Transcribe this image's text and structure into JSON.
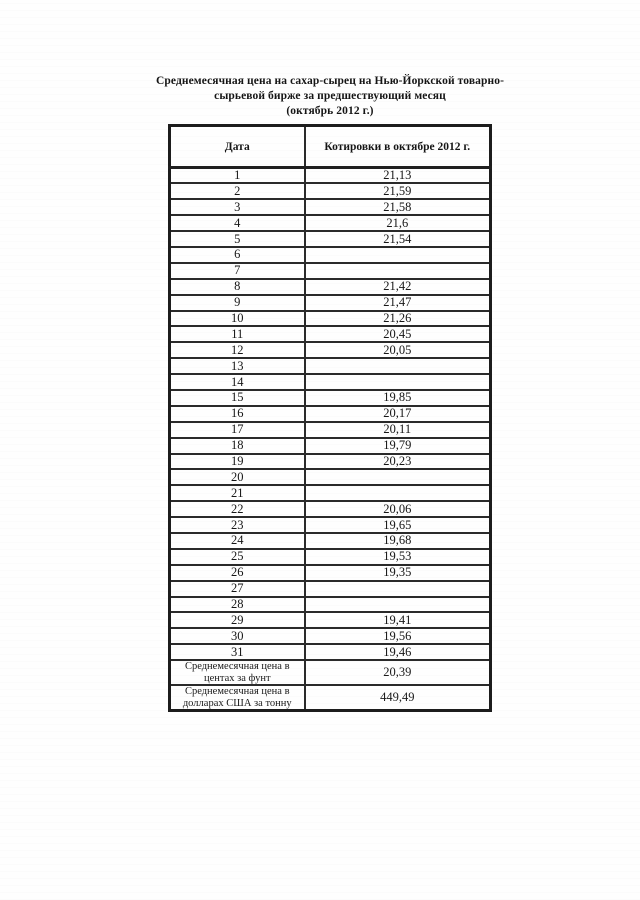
{
  "document": {
    "title_lines": [
      "Среднемесячная цена на сахар-сырец на Нью-Йоркской товарно-",
      "сырьевой бирже за предшествующий месяц",
      "(октябрь 2012 г.)"
    ]
  },
  "table": {
    "columns": [
      "Дата",
      "Котировки в октябре 2012 г."
    ],
    "rows": [
      {
        "date": "1",
        "quote": "21,13"
      },
      {
        "date": "2",
        "quote": "21,59"
      },
      {
        "date": "3",
        "quote": "21,58"
      },
      {
        "date": "4",
        "quote": "21,6"
      },
      {
        "date": "5",
        "quote": "21,54"
      },
      {
        "date": "6",
        "quote": ""
      },
      {
        "date": "7",
        "quote": ""
      },
      {
        "date": "8",
        "quote": "21,42"
      },
      {
        "date": "9",
        "quote": "21,47"
      },
      {
        "date": "10",
        "quote": "21,26"
      },
      {
        "date": "11",
        "quote": "20,45"
      },
      {
        "date": "12",
        "quote": "20,05"
      },
      {
        "date": "13",
        "quote": ""
      },
      {
        "date": "14",
        "quote": ""
      },
      {
        "date": "15",
        "quote": "19,85"
      },
      {
        "date": "16",
        "quote": "20,17"
      },
      {
        "date": "17",
        "quote": "20,11"
      },
      {
        "date": "18",
        "quote": "19,79"
      },
      {
        "date": "19",
        "quote": "20,23"
      },
      {
        "date": "20",
        "quote": ""
      },
      {
        "date": "21",
        "quote": ""
      },
      {
        "date": "22",
        "quote": "20,06"
      },
      {
        "date": "23",
        "quote": "19,65"
      },
      {
        "date": "24",
        "quote": "19,68"
      },
      {
        "date": "25",
        "quote": "19,53"
      },
      {
        "date": "26",
        "quote": "19,35"
      },
      {
        "date": "27",
        "quote": ""
      },
      {
        "date": "28",
        "quote": ""
      },
      {
        "date": "29",
        "quote": "19,41"
      },
      {
        "date": "30",
        "quote": "19,56"
      },
      {
        "date": "31",
        "quote": "19,46"
      }
    ],
    "summary_rows": [
      {
        "label": "Среднемесячная цена в центах за фунт",
        "value": "20,39"
      },
      {
        "label": "Среднемесячная цена в долларах США за тонну",
        "value": "449,49"
      }
    ]
  }
}
